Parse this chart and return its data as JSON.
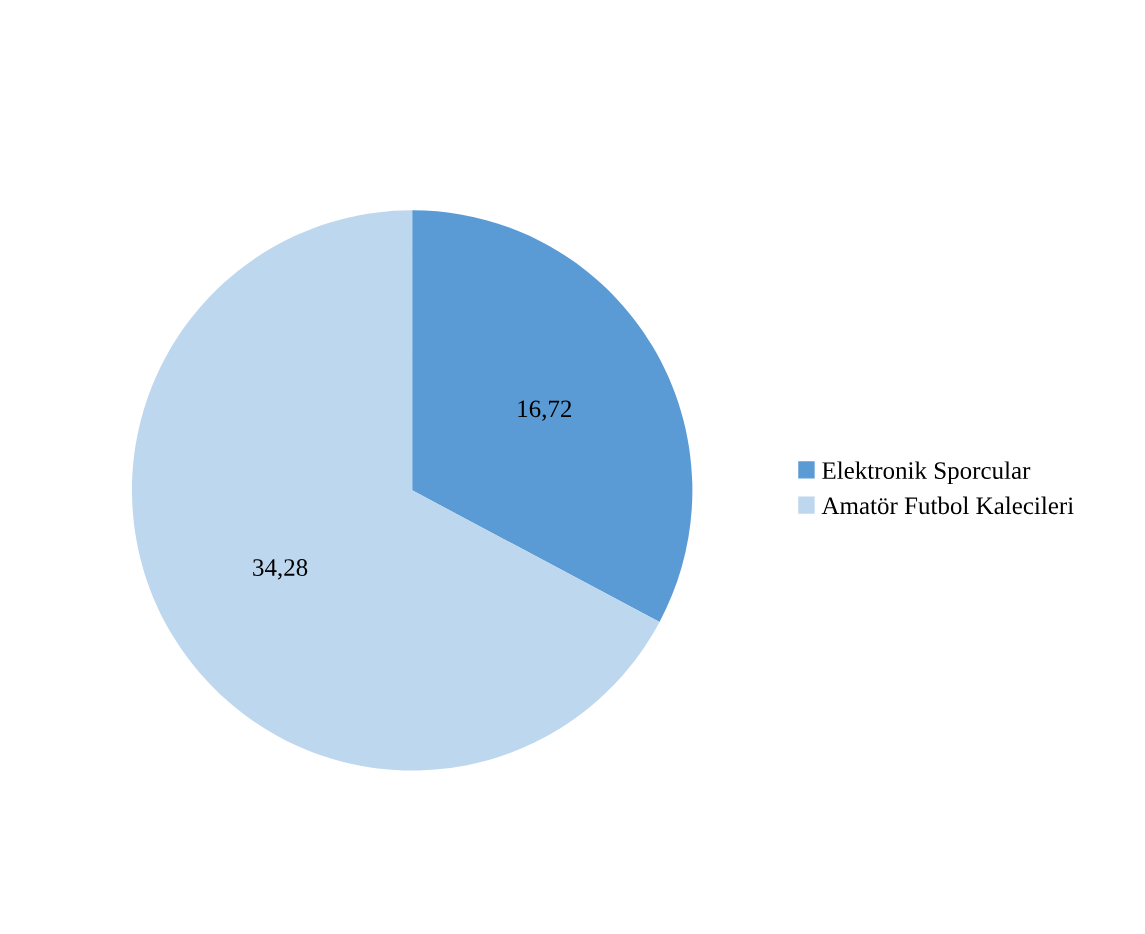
{
  "chart_data": {
    "type": "pie",
    "categories": [
      "Elektronik Sporcular",
      "Amatör Futbol Kalecileri"
    ],
    "values": [
      16.72,
      34.28
    ],
    "colors": [
      "#5b9bd5",
      "#bdd7ee"
    ],
    "value_labels": [
      "16,72",
      "34,28"
    ],
    "legend": "right"
  }
}
